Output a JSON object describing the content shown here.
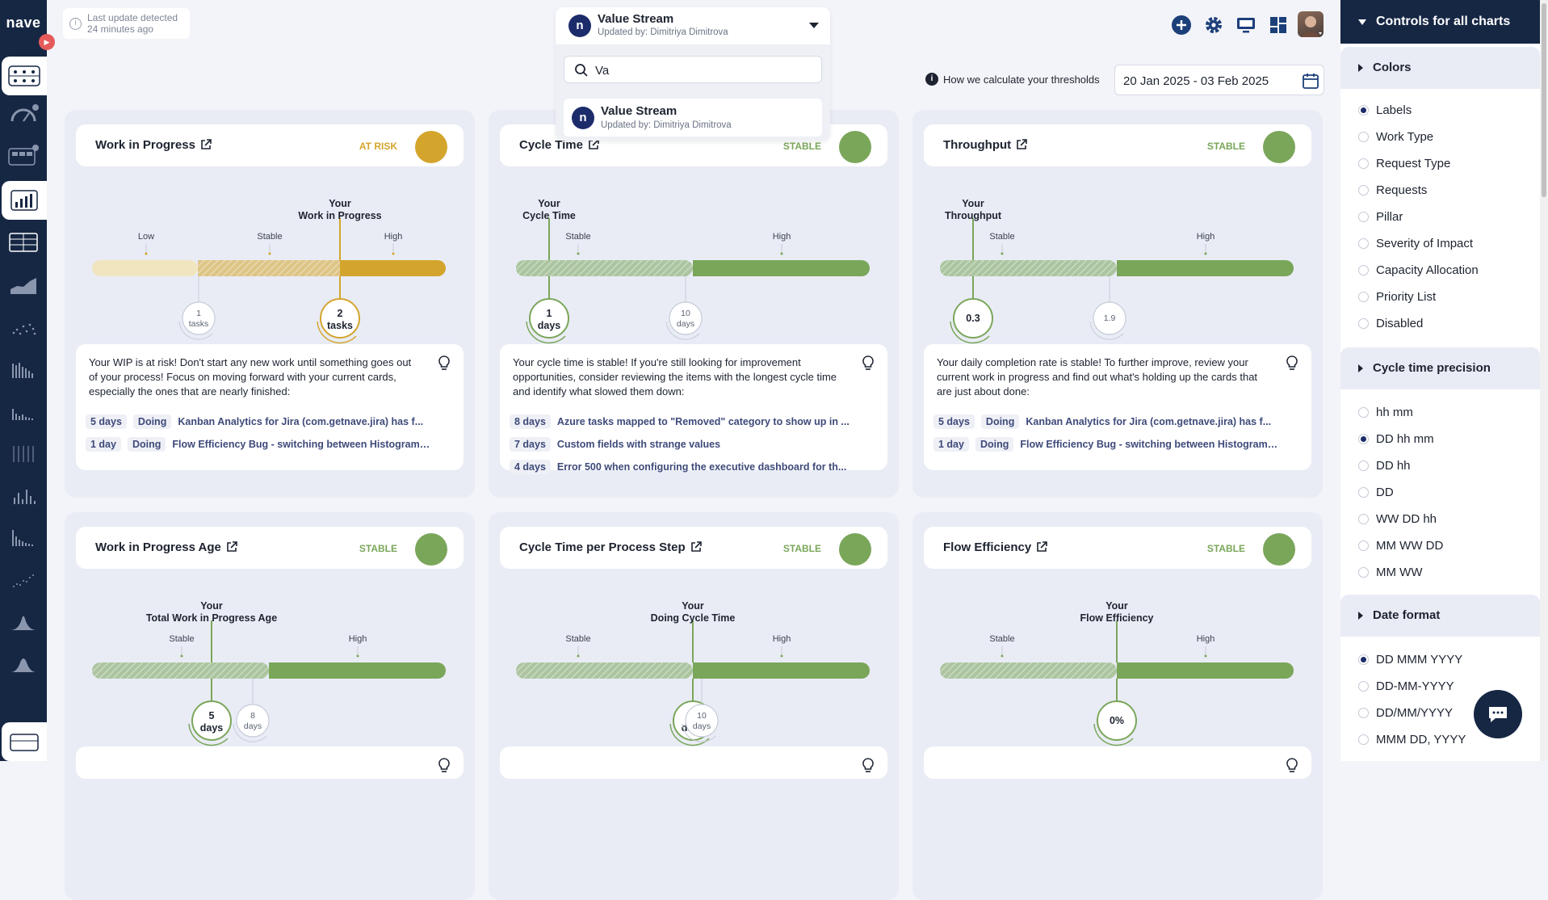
{
  "app": {
    "logo": "nave"
  },
  "topbar": {
    "last_update_line1": "Last update detected",
    "last_update_line2": "24 minutes ago",
    "thresholds_link": "How we calculate your thresholds",
    "date_range": "20 Jan 2025 - 03 Feb 2025",
    "icons": [
      "plus-icon",
      "gear-icon",
      "monitor-icon",
      "dashboard-icon",
      "avatar"
    ]
  },
  "selector": {
    "title": "Value Stream",
    "subtitle": "Updated by: Dimitriya Dimitrova",
    "search_value": "Va",
    "option_title": "Value Stream",
    "option_subtitle": "Updated by: Dimitriya Dimitrova",
    "logo_letter": "n"
  },
  "colors": {
    "at_risk": "#d4a52d",
    "stable": "#7aa65a",
    "nav": "#162744",
    "link": "#3e4a7a"
  },
  "cards": [
    {
      "title": "Work in Progress",
      "status": "AT RISK",
      "your_label_1": "Your",
      "your_label_2": "Work in Progress",
      "labels": [
        "Low",
        "Stable",
        "High"
      ],
      "your_value": "2",
      "your_unit": "tasks",
      "other_value": "1",
      "other_unit": "tasks",
      "insight": "Your WIP is at risk! Don't start any new work until something goes out of your process! Focus on moving forward with your current cards, especially the ones that are nearly finished:",
      "rows": [
        {
          "age": "5 days",
          "state": "Doing",
          "text": "Kanban Analytics for Jira (com.getnave.jira) has f..."
        },
        {
          "age": "1 day",
          "state": "Doing",
          "text": "Flow Efficiency Bug - switching between Histogram ..."
        }
      ]
    },
    {
      "title": "Cycle Time",
      "status": "STABLE",
      "your_label_1": "Your",
      "your_label_2": "Cycle Time",
      "labels": [
        "Stable",
        "High"
      ],
      "your_value": "1",
      "your_unit": "days",
      "other_value": "10",
      "other_unit": "days",
      "insight": "Your cycle time is stable! If you're still looking for improvement opportunities, consider reviewing the items with the longest cycle time and identify what slowed them down:",
      "rows": [
        {
          "age": "8 days",
          "state": "",
          "text": "Azure tasks mapped to \"Removed\" category to show up in ..."
        },
        {
          "age": "7 days",
          "state": "",
          "text": "Custom fields with strange values"
        },
        {
          "age": "4 days",
          "state": "",
          "text": "Error 500 when configuring the executive dashboard for th..."
        }
      ]
    },
    {
      "title": "Throughput",
      "status": "STABLE",
      "your_label_1": "Your",
      "your_label_2": "Throughput",
      "labels": [
        "Stable",
        "High"
      ],
      "your_value": "0.3",
      "your_unit": "",
      "other_value": "1.9",
      "other_unit": "",
      "insight": "Your daily completion rate is stable! To further improve, review your current work in progress and find out what's holding up the cards that are just about done:",
      "rows": [
        {
          "age": "5 days",
          "state": "Doing",
          "text": "Kanban Analytics for Jira (com.getnave.jira) has f..."
        },
        {
          "age": "1 day",
          "state": "Doing",
          "text": "Flow Efficiency Bug - switching between Histogram ..."
        }
      ]
    },
    {
      "title": "Work in Progress Age",
      "status": "STABLE",
      "your_label_1": "Your",
      "your_label_2": "Total Work in Progress Age",
      "labels": [
        "Stable",
        "High"
      ],
      "your_value": "5",
      "your_unit": "days",
      "other_value": "8",
      "other_unit": "days"
    },
    {
      "title": "Cycle Time per Process Step",
      "status": "STABLE",
      "your_label_1": "Your",
      "your_label_2": "Doing Cycle Time",
      "labels": [
        "Stable",
        "High"
      ],
      "your_value": "8",
      "your_unit": "days",
      "other_value": "10",
      "other_unit": "days"
    },
    {
      "title": "Flow Efficiency",
      "status": "STABLE",
      "your_label_1": "Your",
      "your_label_2": "Flow Efficiency",
      "labels": [
        "Stable",
        "High"
      ],
      "your_value": "0%",
      "your_unit": ""
    }
  ],
  "right_panel": {
    "title": "Controls for all charts",
    "sections": {
      "colors": "Colors",
      "cycle_precision": "Cycle time precision",
      "date_format": "Date format"
    },
    "color_options": [
      "Labels",
      "Work Type",
      "Request Type",
      "Requests",
      "Pillar",
      "Severity of Impact",
      "Capacity Allocation",
      "Priority List",
      "Disabled"
    ],
    "color_selected": "Labels",
    "precision_options": [
      "hh mm",
      "DD hh mm",
      "DD hh",
      "DD",
      "WW DD hh",
      "MM WW DD",
      "MM WW"
    ],
    "precision_selected": "DD hh mm",
    "date_options": [
      "DD MMM YYYY",
      "DD-MM-YYYY",
      "DD/MM/YYYY",
      "MMM DD, YYYY"
    ],
    "date_selected": "DD MMM YYYY"
  }
}
